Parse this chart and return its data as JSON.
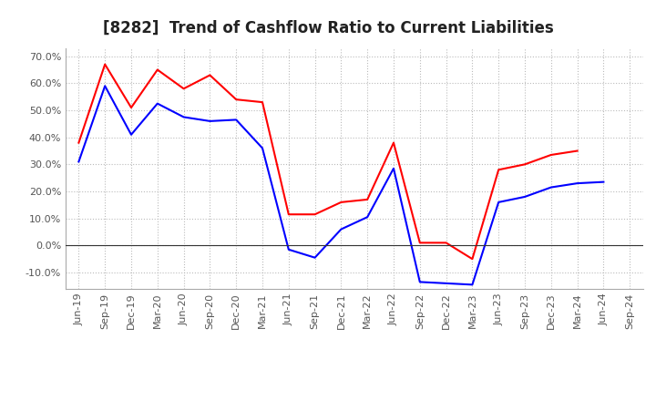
{
  "title": "[8282]  Trend of Cashflow Ratio to Current Liabilities",
  "x_labels": [
    "Jun-19",
    "Sep-19",
    "Dec-19",
    "Mar-20",
    "Jun-20",
    "Sep-20",
    "Dec-20",
    "Mar-21",
    "Jun-21",
    "Sep-21",
    "Dec-21",
    "Mar-22",
    "Jun-22",
    "Sep-22",
    "Dec-22",
    "Mar-23",
    "Jun-23",
    "Sep-23",
    "Dec-23",
    "Mar-24",
    "Jun-24",
    "Sep-24"
  ],
  "operating_cf": [
    38.0,
    67.0,
    51.0,
    65.0,
    58.0,
    63.0,
    54.0,
    53.0,
    11.5,
    11.5,
    16.0,
    17.0,
    38.0,
    1.0,
    1.0,
    -5.0,
    28.0,
    30.0,
    33.5,
    35.0,
    null,
    null
  ],
  "free_cf": [
    31.0,
    59.0,
    41.0,
    52.5,
    47.5,
    46.0,
    46.5,
    36.0,
    -1.5,
    -4.5,
    6.0,
    10.5,
    28.5,
    -13.5,
    -14.0,
    -14.5,
    16.0,
    18.0,
    21.5,
    23.0,
    23.5,
    null
  ],
  "operating_color": "#ff0000",
  "free_color": "#0000ff",
  "ylim": [
    -16.0,
    73.0
  ],
  "yticks": [
    -10.0,
    0.0,
    10.0,
    20.0,
    30.0,
    40.0,
    50.0,
    60.0,
    70.0
  ],
  "background_color": "#ffffff",
  "grid_color": "#bbbbbb",
  "title_fontsize": 12,
  "legend_fontsize": 9,
  "tick_fontsize": 8
}
